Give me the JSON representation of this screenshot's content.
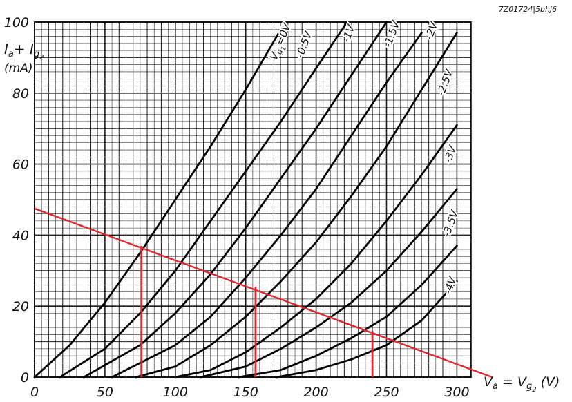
{
  "reference": "7Z01724|5bhj6",
  "chart_data": {
    "type": "line",
    "title": "",
    "xlabel": "Va = Vg2 (V)",
    "xlabel_parts": {
      "main": "V",
      "sub1": "a",
      "eq": " = V",
      "sub2": "g",
      "sub3": "2",
      "unit": " (V)"
    },
    "ylabel": "Ia + Ig2 (mA)",
    "ylabel_parts": {
      "main": "I",
      "sub1": "a",
      "plus": "+ I",
      "sub2": "g",
      "sub3": "2",
      "unit": "(mA)"
    },
    "xlim": [
      0,
      310
    ],
    "ylim": [
      0,
      100
    ],
    "xticks": [
      0,
      50,
      100,
      150,
      200,
      250,
      300
    ],
    "yticks": [
      0,
      20,
      40,
      60,
      80,
      100
    ],
    "grid": true,
    "series": [
      {
        "name": "Vg1=0V",
        "label_parts": {
          "a": "V",
          "b": "g",
          "c": "1",
          "d": "=0V"
        },
        "x": [
          0,
          25,
          50,
          75,
          100,
          125,
          150,
          175
        ],
        "y": [
          0,
          9,
          21,
          35,
          50,
          65,
          81,
          98
        ]
      },
      {
        "name": "-0.5V",
        "x": [
          18,
          50,
          75,
          100,
          125,
          150,
          175,
          200,
          222
        ],
        "y": [
          0,
          8,
          18,
          30,
          44,
          58,
          72,
          87,
          100
        ]
      },
      {
        "name": "-1V",
        "x": [
          35,
          75,
          100,
          125,
          150,
          175,
          200,
          225,
          250
        ],
        "y": [
          0,
          9,
          18,
          29,
          42,
          56,
          70,
          85,
          100
        ]
      },
      {
        "name": "-1.5V",
        "x": [
          55,
          100,
          125,
          150,
          175,
          200,
          225,
          250,
          275
        ],
        "y": [
          0,
          9,
          17,
          28,
          40,
          53,
          68,
          83,
          97
        ]
      },
      {
        "name": "-2V",
        "x": [
          72,
          100,
          125,
          150,
          175,
          200,
          225,
          250,
          275,
          300
        ],
        "y": [
          0,
          3,
          9,
          17,
          27,
          38,
          51,
          65,
          81,
          97
        ]
      },
      {
        "name": "-2.5V",
        "x": [
          100,
          125,
          150,
          175,
          200,
          225,
          250,
          275,
          300
        ],
        "y": [
          0,
          2,
          7,
          14,
          22,
          32,
          44,
          57,
          71
        ]
      },
      {
        "name": "-3V",
        "x": [
          118,
          150,
          175,
          200,
          225,
          250,
          275,
          300
        ],
        "y": [
          0,
          3,
          8,
          14,
          21,
          30,
          41,
          53
        ]
      },
      {
        "name": "-3.5V",
        "x": [
          145,
          175,
          200,
          225,
          250,
          275,
          300
        ],
        "y": [
          0,
          2,
          6,
          11,
          17,
          26,
          37
        ]
      },
      {
        "name": "-4V",
        "x": [
          172,
          200,
          225,
          250,
          275,
          300
        ],
        "y": [
          0,
          2,
          5,
          9,
          16,
          27
        ]
      }
    ],
    "load_line": {
      "color": "#e0262e",
      "x": [
        0,
        325
      ],
      "y": [
        47.5,
        0
      ]
    },
    "markers": {
      "color": "#e0262e",
      "points": [
        {
          "x": 76,
          "y": 37
        },
        {
          "x": 157,
          "y": 25.5
        },
        {
          "x": 240,
          "y": 13
        }
      ]
    }
  }
}
